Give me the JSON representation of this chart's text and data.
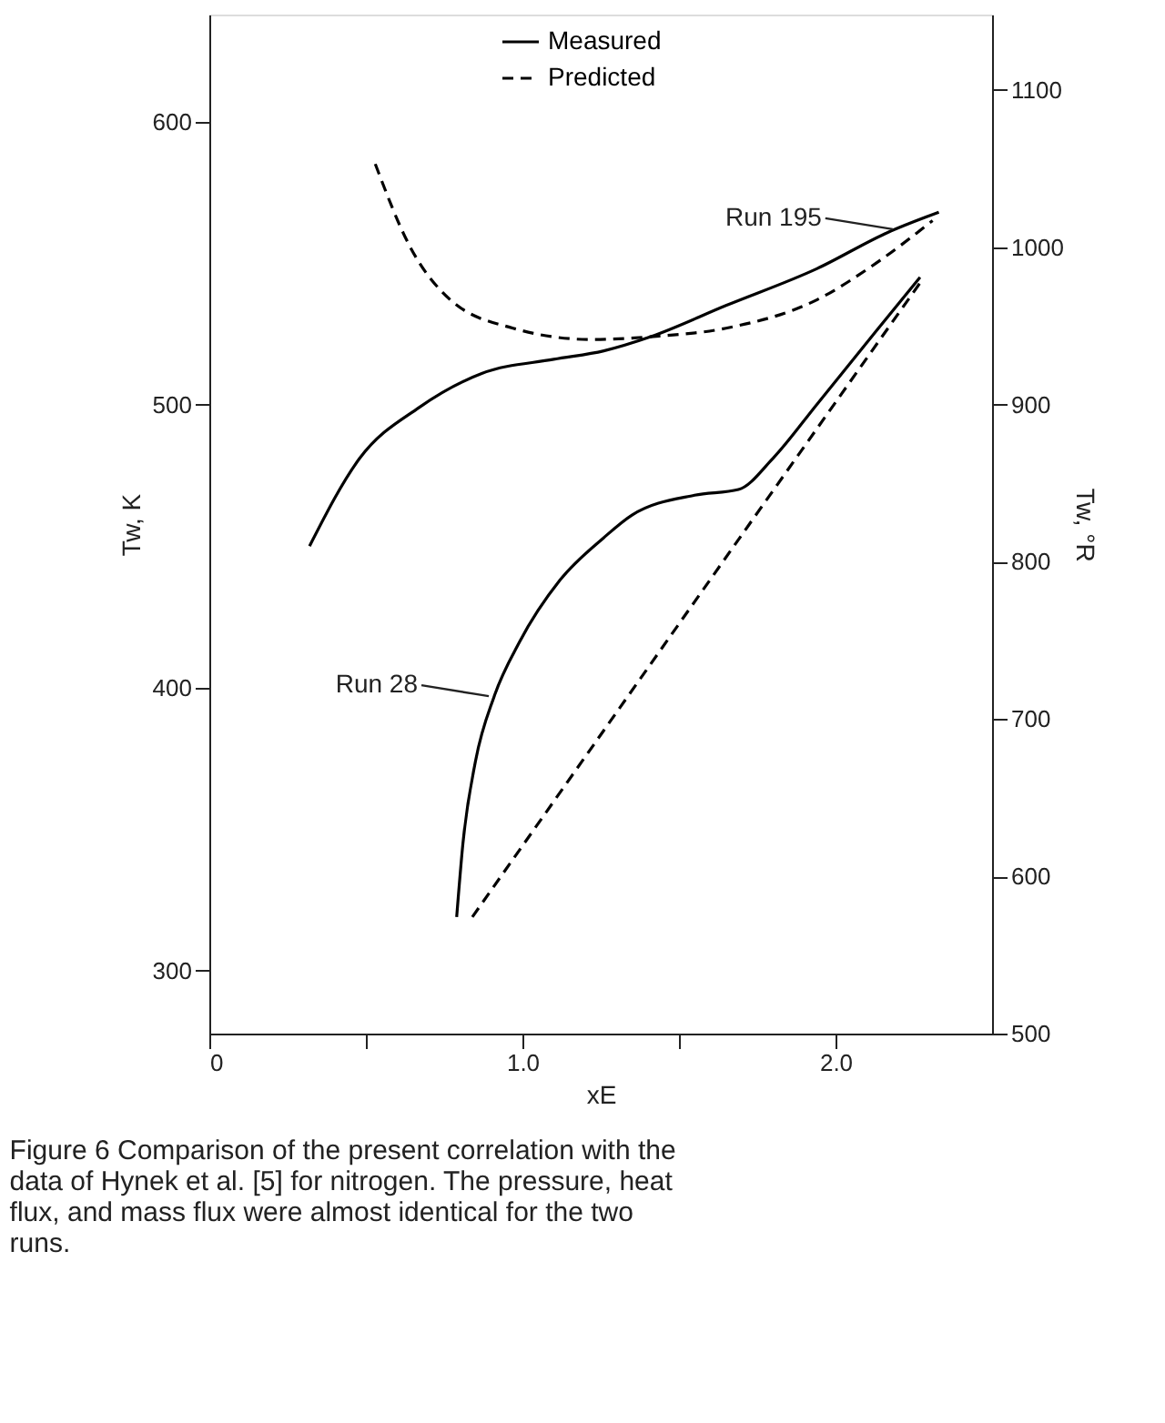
{
  "chart_data": {
    "type": "line",
    "xlabel": "xE",
    "ylabel": "Tw, K",
    "y2label": "Tw, °R",
    "xlim": [
      0,
      2.5
    ],
    "xticks": [
      0,
      {
        "value": 0.5,
        "label": null
      },
      {
        "value": 1.0,
        "label": "1.0"
      },
      {
        "value": 1.5,
        "label": null
      },
      {
        "value": 2.0,
        "label": "2.0"
      }
    ],
    "ylim": [
      277.8,
      637.8
    ],
    "yticks": [
      300,
      400,
      500,
      600
    ],
    "y2lim": [
      500,
      1148
    ],
    "y2ticks": [
      500,
      600,
      700,
      800,
      900,
      1000,
      1100
    ],
    "grid": false,
    "legend": "top",
    "marker": "none",
    "series": [
      {
        "name": "Measured",
        "color": "#000000",
        "line_style": "solid",
        "x": [
          0.32,
          0.48,
          0.67,
          0.87,
          1.1,
          1.26,
          1.41,
          1.65,
          1.94,
          2.17,
          2.33
        ],
        "values": [
          450,
          481,
          499,
          511,
          516,
          519,
          524,
          535,
          548,
          561,
          568
        ]
      },
      {
        "name": "Predicted",
        "color": "#000000",
        "line_style": "dashed",
        "x": [
          0.53,
          0.64,
          0.77,
          0.97,
          1.22,
          1.41,
          1.65,
          1.94,
          2.13,
          2.31
        ],
        "values": [
          585,
          556,
          537,
          527,
          523,
          524,
          527,
          537,
          550,
          565
        ]
      },
      {
        "color": "#000000",
        "line_style": "solid",
        "x": [
          0.79,
          0.81,
          0.85,
          0.91,
          0.99,
          1.12,
          1.26,
          1.35,
          1.55,
          1.69,
          1.8,
          1.94,
          2.13,
          2.27
        ],
        "values": [
          319,
          345,
          374,
          397,
          416,
          438,
          453,
          461,
          468,
          470,
          481,
          500,
          526,
          545
        ]
      },
      {
        "color": "#000000",
        "line_style": "dashed",
        "x": [
          0.84,
          1.72,
          2.27
        ],
        "values": [
          319,
          457,
          543
        ]
      }
    ],
    "annotations": [
      {
        "text": "Run 195",
        "x": 2.2,
        "y": 562
      },
      {
        "text": "Run 28",
        "x": 0.91,
        "y": 397
      },
      "Figure 6  Comparison of the present correlation with the data of Hynek et al. [5] for nitrogen. The pressure, heat flux, and mass flux were almost identical for the two runs."
    ]
  }
}
